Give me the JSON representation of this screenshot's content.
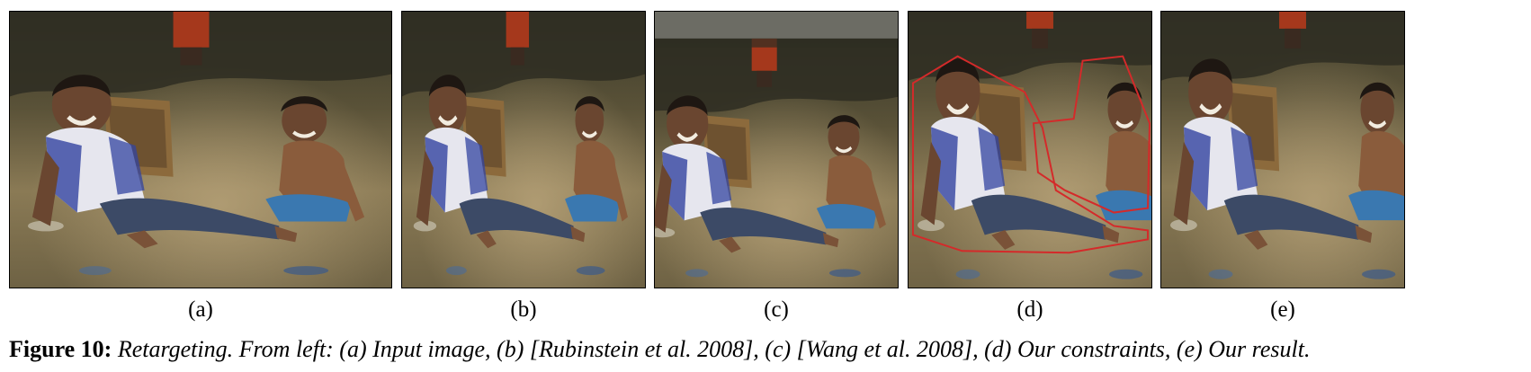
{
  "panels": [
    {
      "id": "a",
      "label": "(a)"
    },
    {
      "id": "b",
      "label": "(b)"
    },
    {
      "id": "c",
      "label": "(c)"
    },
    {
      "id": "d",
      "label": "(d)"
    },
    {
      "id": "e",
      "label": "(e)"
    }
  ],
  "caption": {
    "label": "Figure 10:",
    "text": "Retargeting. From left: (a) Input image, (b) [Rubinstein et al. 2008], (c) [Wang et al. 2008], (d) Our constraints, (e) Our result."
  },
  "colors": {
    "constraint_outline": "#d42a2a"
  }
}
